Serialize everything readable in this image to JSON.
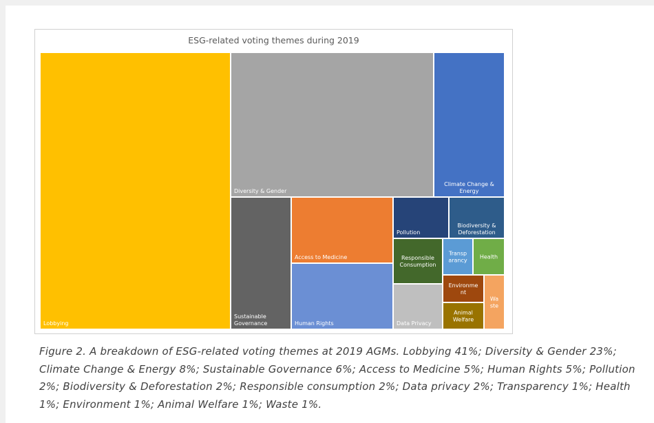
{
  "chart_data": {
    "type": "treemap",
    "title": "ESG-related voting themes during 2019",
    "unit": "%",
    "items": [
      {
        "label": "Lobbying",
        "value": 41,
        "color": "#FFC000"
      },
      {
        "label": "Diversity & Gender",
        "value": 23,
        "color": "#A5A5A5"
      },
      {
        "label": "Climate Change & Energy",
        "value": 8,
        "color": "#4472C4"
      },
      {
        "label": "Sustainable Governance",
        "value": 6,
        "color": "#636363"
      },
      {
        "label": "Access to Medicine",
        "value": 5,
        "color": "#ED7D31"
      },
      {
        "label": "Human Rights",
        "value": 5,
        "color": "#6B8FD4"
      },
      {
        "label": "Pollution",
        "value": 2,
        "color": "#264478"
      },
      {
        "label": "Biodiversity & Deforestation",
        "value": 2,
        "color": "#2E5C8A"
      },
      {
        "label": "Responsible Consumption",
        "value": 2,
        "color": "#43682B"
      },
      {
        "label": "Data Privacy",
        "value": 2,
        "color": "#BFBFBF"
      },
      {
        "label": "Transparancy",
        "value": 1,
        "color": "#5B9BD5"
      },
      {
        "label": "Health",
        "value": 1,
        "color": "#70AD47"
      },
      {
        "label": "Environment",
        "value": 1,
        "color": "#9E480E"
      },
      {
        "label": "Animal Welfare",
        "value": 1,
        "color": "#997300"
      },
      {
        "label": "Waste",
        "value": 1,
        "color": "#F4A460"
      }
    ]
  },
  "caption": "Figure 2. A breakdown of ESG-related voting themes at 2019 AGMs. Lobbying 41%; Diversity & Gender 23%; Climate Change & Energy 8%; Sustainable Governance 6%; Access to Medicine 5%; Human Rights 5%; Pollution 2%; Biodiversity & Deforestation 2%; Responsible consumption 2%; Data privacy 2%; Transparency 1%; Health 1%; Environment 1%; Animal Welfare 1%; Waste 1%."
}
